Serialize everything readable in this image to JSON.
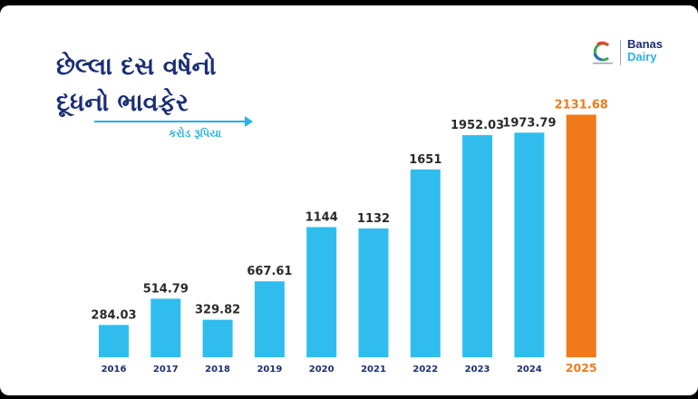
{
  "header": {
    "title_line1": "છેલ્લા દસ વર્ષનો",
    "title_line2": "દૂધનો ભાવફેર",
    "subtitle": "કરોડ રૂપિયા"
  },
  "logo": {
    "brand_line1": "Banas",
    "brand_line2": "Dairy",
    "emblem_icon": "cooperative-year-emblem-icon"
  },
  "colors": {
    "bar": "#30bdee",
    "highlight_bar": "#f07a1a",
    "value_text": "#2a2a2a",
    "year_text": "#1b2e74",
    "highlight_text": "#f07a1a"
  },
  "chart_data": {
    "type": "bar",
    "categories": [
      "2016",
      "2017",
      "2018",
      "2019",
      "2020",
      "2021",
      "2022",
      "2023",
      "2024",
      "2025"
    ],
    "values": [
      284.03,
      514.79,
      329.82,
      667.61,
      1144,
      1132,
      1651,
      1952.03,
      1973.79,
      2131.68
    ],
    "value_labels": [
      "284.03",
      "514.79",
      "329.82",
      "667.61",
      "1144",
      "1132",
      "1651",
      "1952.03",
      "1973.79",
      "2131.68"
    ],
    "highlight_category": "2025",
    "title": "છેલ્લા દસ વર્ષનો દૂધનો ભાવફેર",
    "ylabel": "કરોડ રૂપિયા",
    "xlabel": "",
    "grid": false,
    "legend": "none"
  }
}
